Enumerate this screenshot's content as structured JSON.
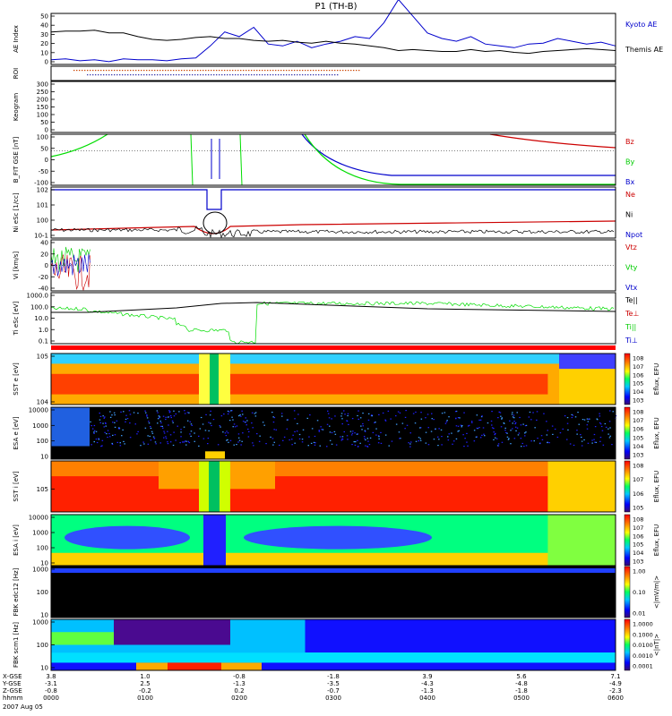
{
  "chart_data": {
    "type": "line",
    "title": "P1 (TH-B)",
    "date_label": "2007 Aug 05",
    "x_axis": {
      "rows": [
        {
          "label": "X-GSE",
          "values": [
            "3.8",
            "1.0",
            "-0.8",
            "-1.8",
            "3.9",
            "5.6",
            "7.1"
          ]
        },
        {
          "label": "Y-GSE",
          "values": [
            "-3.1",
            "2.5",
            "-1.3",
            "-3.5",
            "-4.3",
            "-4.8",
            "-4.9"
          ]
        },
        {
          "label": "Z-GSE",
          "values": [
            "-0.8",
            "-0.2",
            "0.2",
            "-0.7",
            "-1.3",
            "-1.8",
            "-2.3"
          ]
        },
        {
          "label": "hhmm",
          "values": [
            "0000",
            "0100",
            "0200",
            "0300",
            "0400",
            "0500",
            "0600"
          ]
        }
      ]
    },
    "panels": [
      {
        "id": "ae",
        "ylabel": "AE Index",
        "ticks": [
          "50",
          "40",
          "30",
          "20",
          "10",
          "0"
        ],
        "series": [
          {
            "name": "Kyoto AE",
            "color": "#0000cc",
            "values": [
              5,
              6,
              4,
              5,
              3,
              6,
              5,
              5,
              4,
              6,
              7,
              20,
              35,
              30,
              40,
              22,
              20,
              25,
              18,
              22,
              25,
              30,
              28,
              45,
              70,
              52,
              34,
              28,
              25,
              30,
              22,
              20,
              18,
              22,
              23,
              28,
              25,
              22,
              24,
              20
            ]
          },
          {
            "name": "Themis AE",
            "color": "#000000",
            "values": [
              35,
              36,
              36,
              37,
              34,
              34,
              30,
              27,
              26,
              27,
              29,
              30,
              28,
              28,
              26,
              25,
              26,
              24,
              23,
              25,
              23,
              22,
              20,
              18,
              15,
              16,
              15,
              14,
              14,
              16,
              14,
              15,
              13,
              12,
              14,
              15,
              16,
              17,
              16,
              15
            ]
          }
        ]
      },
      {
        "id": "roi",
        "ylabel": "ROI",
        "ticks": []
      },
      {
        "id": "keogram",
        "ylabel": "Keogram",
        "ticks": [
          "300",
          "250",
          "200",
          "150",
          "100",
          "50",
          "0"
        ]
      },
      {
        "id": "bfit",
        "ylabel": "B_FIT GSE [nT]",
        "ticks": [
          "100",
          "50",
          "0",
          "-50",
          "-100"
        ],
        "series": [
          {
            "name": "Bz",
            "color": "#cc0000"
          },
          {
            "name": "By",
            "color": "#00cc00"
          },
          {
            "name": "Bx",
            "color": "#0000cc"
          }
        ]
      },
      {
        "id": "ni",
        "ylabel": "Ni eSc [1/cc]",
        "ticks": [
          "10^2",
          "10^1",
          "10^0",
          "10^-1"
        ],
        "series": [
          {
            "name": "Ne",
            "color": "#cc0000"
          },
          {
            "name": "Ni",
            "color": "#000000"
          },
          {
            "name": "Npot",
            "color": "#0000cc"
          }
        ]
      },
      {
        "id": "vi",
        "ylabel": "Vi [km/s]",
        "ticks": [
          "40",
          "20",
          "0",
          "-20",
          "-40"
        ],
        "series": [
          {
            "name": "Vtz",
            "color": "#cc0000"
          },
          {
            "name": "Vty",
            "color": "#00cc00"
          },
          {
            "name": "Vtx",
            "color": "#0000cc"
          }
        ]
      },
      {
        "id": "ti",
        "ylabel": "Ti eSc [eV]",
        "ticks": [
          "1000.0",
          "100.0",
          "10.0",
          "1.0",
          "0.1"
        ],
        "series": [
          {
            "name": "Te||",
            "color": "#000000"
          },
          {
            "name": "Te⊥",
            "color": "#cc0000"
          },
          {
            "name": "Ti||",
            "color": "#00cc00"
          },
          {
            "name": "Ti⊥",
            "color": "#0000cc"
          }
        ]
      },
      {
        "id": "sst1",
        "ylabel": "SST e [eV]",
        "ticks": [
          "10^5",
          "10^4"
        ],
        "cbar": "Eflux, EFU",
        "cticks": [
          "10^8",
          "10^7",
          "10^6",
          "10^5",
          "10^4",
          "10^3"
        ]
      },
      {
        "id": "esa1",
        "ylabel": "ESA e [eV]",
        "ticks": [
          "10000",
          "1000",
          "100",
          "10"
        ],
        "cbar": "Eflux, EFU",
        "cticks": [
          "10^8",
          "10^7",
          "10^6",
          "10^5",
          "10^4",
          "10^3"
        ]
      },
      {
        "id": "sst2",
        "ylabel": "SST i [eV]",
        "ticks": [
          "10^5"
        ],
        "cbar": "Eflux, EFU",
        "cticks": [
          "10^8",
          "10^7",
          "10^6",
          "10^5"
        ]
      },
      {
        "id": "esa2",
        "ylabel": "ESA i [eV]",
        "ticks": [
          "10000",
          "1000",
          "100",
          "10"
        ],
        "cbar": "Eflux, EFU",
        "cticks": [
          "10^8",
          "10^7",
          "10^6",
          "10^5",
          "10^4",
          "10^3"
        ]
      },
      {
        "id": "fbk1",
        "ylabel": "FBK edc12 [Hz]",
        "ticks": [
          "1000",
          "100",
          "10"
        ],
        "cbar": "<|mV/m|>",
        "cticks": [
          "1.00",
          "0.10",
          "0.01"
        ]
      },
      {
        "id": "fbk2",
        "ylabel": "FBK scm1 [Hz]",
        "ticks": [
          "1000",
          "100",
          "10"
        ],
        "cbar": "<|nT|>",
        "cticks": [
          "1.0000",
          "0.1000",
          "0.0100",
          "0.0010",
          "0.0001"
        ]
      }
    ]
  }
}
